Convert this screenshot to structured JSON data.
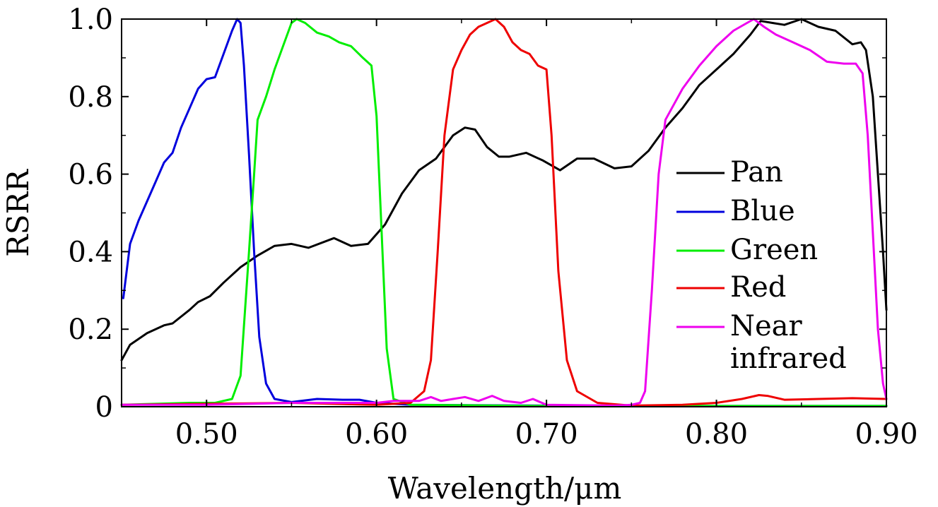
{
  "chart_data": {
    "type": "line",
    "xlabel": "Wavelength/μm",
    "ylabel": "RSRR",
    "xlim": [
      0.45,
      0.9
    ],
    "ylim": [
      0,
      1.0
    ],
    "x_ticks": [
      0.5,
      0.6,
      0.7,
      0.8,
      0.9
    ],
    "x_tick_labels": [
      "0.50",
      "0.60",
      "0.70",
      "0.80",
      "0.90"
    ],
    "y_ticks": [
      0,
      0.2,
      0.4,
      0.6,
      0.8,
      1.0
    ],
    "y_tick_labels": [
      "0",
      "0.2",
      "0.4",
      "0.6",
      "0.8",
      "1.0"
    ],
    "grid": false,
    "legend_position": "right",
    "series": [
      {
        "name": "Pan",
        "color": "#000000",
        "points": [
          [
            0.45,
            0.12
          ],
          [
            0.455,
            0.16
          ],
          [
            0.465,
            0.19
          ],
          [
            0.475,
            0.21
          ],
          [
            0.48,
            0.215
          ],
          [
            0.49,
            0.25
          ],
          [
            0.495,
            0.27
          ],
          [
            0.502,
            0.285
          ],
          [
            0.51,
            0.32
          ],
          [
            0.52,
            0.36
          ],
          [
            0.53,
            0.39
          ],
          [
            0.54,
            0.415
          ],
          [
            0.55,
            0.42
          ],
          [
            0.56,
            0.41
          ],
          [
            0.575,
            0.435
          ],
          [
            0.585,
            0.415
          ],
          [
            0.595,
            0.42
          ],
          [
            0.605,
            0.47
          ],
          [
            0.615,
            0.55
          ],
          [
            0.625,
            0.61
          ],
          [
            0.635,
            0.64
          ],
          [
            0.645,
            0.7
          ],
          [
            0.652,
            0.72
          ],
          [
            0.658,
            0.715
          ],
          [
            0.665,
            0.67
          ],
          [
            0.672,
            0.645
          ],
          [
            0.678,
            0.645
          ],
          [
            0.688,
            0.655
          ],
          [
            0.698,
            0.635
          ],
          [
            0.708,
            0.61
          ],
          [
            0.718,
            0.64
          ],
          [
            0.728,
            0.64
          ],
          [
            0.74,
            0.615
          ],
          [
            0.75,
            0.62
          ],
          [
            0.76,
            0.66
          ],
          [
            0.77,
            0.72
          ],
          [
            0.78,
            0.77
          ],
          [
            0.79,
            0.83
          ],
          [
            0.8,
            0.87
          ],
          [
            0.81,
            0.91
          ],
          [
            0.82,
            0.96
          ],
          [
            0.826,
            0.995
          ],
          [
            0.833,
            0.99
          ],
          [
            0.84,
            0.985
          ],
          [
            0.85,
            1.0
          ],
          [
            0.86,
            0.98
          ],
          [
            0.87,
            0.97
          ],
          [
            0.88,
            0.935
          ],
          [
            0.885,
            0.94
          ],
          [
            0.888,
            0.92
          ],
          [
            0.892,
            0.8
          ],
          [
            0.895,
            0.6
          ],
          [
            0.898,
            0.4
          ],
          [
            0.9,
            0.25
          ]
        ]
      },
      {
        "name": "Blue",
        "color": "#0000dd",
        "points": [
          [
            0.451,
            0.28
          ],
          [
            0.455,
            0.42
          ],
          [
            0.46,
            0.48
          ],
          [
            0.465,
            0.53
          ],
          [
            0.47,
            0.58
          ],
          [
            0.475,
            0.63
          ],
          [
            0.48,
            0.655
          ],
          [
            0.485,
            0.72
          ],
          [
            0.49,
            0.77
          ],
          [
            0.495,
            0.82
          ],
          [
            0.5,
            0.845
          ],
          [
            0.505,
            0.85
          ],
          [
            0.51,
            0.91
          ],
          [
            0.515,
            0.97
          ],
          [
            0.518,
            1.0
          ],
          [
            0.52,
            0.99
          ],
          [
            0.522,
            0.88
          ],
          [
            0.525,
            0.65
          ],
          [
            0.528,
            0.4
          ],
          [
            0.531,
            0.18
          ],
          [
            0.535,
            0.06
          ],
          [
            0.54,
            0.02
          ],
          [
            0.55,
            0.012
          ],
          [
            0.565,
            0.02
          ],
          [
            0.58,
            0.018
          ],
          [
            0.59,
            0.018
          ],
          [
            0.6,
            0.01
          ],
          [
            0.62,
            0.005
          ],
          [
            0.7,
            0.003
          ],
          [
            0.8,
            0.002
          ],
          [
            0.9,
            0.002
          ]
        ]
      },
      {
        "name": "Green",
        "color": "#00ee00",
        "points": [
          [
            0.45,
            0.005
          ],
          [
            0.49,
            0.01
          ],
          [
            0.505,
            0.01
          ],
          [
            0.515,
            0.02
          ],
          [
            0.52,
            0.08
          ],
          [
            0.525,
            0.4
          ],
          [
            0.528,
            0.6
          ],
          [
            0.53,
            0.74
          ],
          [
            0.535,
            0.8
          ],
          [
            0.54,
            0.87
          ],
          [
            0.545,
            0.93
          ],
          [
            0.55,
            0.99
          ],
          [
            0.553,
            1.0
          ],
          [
            0.558,
            0.99
          ],
          [
            0.565,
            0.965
          ],
          [
            0.572,
            0.955
          ],
          [
            0.578,
            0.94
          ],
          [
            0.585,
            0.93
          ],
          [
            0.592,
            0.9
          ],
          [
            0.597,
            0.88
          ],
          [
            0.6,
            0.75
          ],
          [
            0.603,
            0.45
          ],
          [
            0.606,
            0.15
          ],
          [
            0.61,
            0.02
          ],
          [
            0.62,
            0.005
          ],
          [
            0.7,
            0.002
          ],
          [
            0.8,
            0.002
          ],
          [
            0.9,
            0.002
          ]
        ]
      },
      {
        "name": "Red",
        "color": "#ee0000",
        "points": [
          [
            0.45,
            0.005
          ],
          [
            0.55,
            0.01
          ],
          [
            0.6,
            0.005
          ],
          [
            0.62,
            0.01
          ],
          [
            0.628,
            0.04
          ],
          [
            0.632,
            0.12
          ],
          [
            0.636,
            0.4
          ],
          [
            0.64,
            0.7
          ],
          [
            0.645,
            0.87
          ],
          [
            0.65,
            0.92
          ],
          [
            0.655,
            0.96
          ],
          [
            0.66,
            0.98
          ],
          [
            0.665,
            0.99
          ],
          [
            0.67,
            1.0
          ],
          [
            0.675,
            0.98
          ],
          [
            0.68,
            0.94
          ],
          [
            0.685,
            0.92
          ],
          [
            0.69,
            0.91
          ],
          [
            0.695,
            0.88
          ],
          [
            0.7,
            0.87
          ],
          [
            0.703,
            0.7
          ],
          [
            0.707,
            0.35
          ],
          [
            0.712,
            0.12
          ],
          [
            0.718,
            0.04
          ],
          [
            0.73,
            0.01
          ],
          [
            0.75,
            0.003
          ],
          [
            0.78,
            0.005
          ],
          [
            0.8,
            0.01
          ],
          [
            0.815,
            0.02
          ],
          [
            0.825,
            0.03
          ],
          [
            0.83,
            0.028
          ],
          [
            0.84,
            0.018
          ],
          [
            0.86,
            0.02
          ],
          [
            0.88,
            0.022
          ],
          [
            0.9,
            0.02
          ]
        ]
      },
      {
        "name": "Near infrared",
        "color": "#ee00ee",
        "points": [
          [
            0.45,
            0.005
          ],
          [
            0.5,
            0.005
          ],
          [
            0.55,
            0.01
          ],
          [
            0.6,
            0.01
          ],
          [
            0.61,
            0.015
          ],
          [
            0.625,
            0.015
          ],
          [
            0.632,
            0.025
          ],
          [
            0.638,
            0.015
          ],
          [
            0.645,
            0.02
          ],
          [
            0.652,
            0.025
          ],
          [
            0.66,
            0.015
          ],
          [
            0.668,
            0.028
          ],
          [
            0.675,
            0.015
          ],
          [
            0.685,
            0.01
          ],
          [
            0.692,
            0.02
          ],
          [
            0.7,
            0.005
          ],
          [
            0.74,
            0.003
          ],
          [
            0.75,
            0.005
          ],
          [
            0.755,
            0.01
          ],
          [
            0.758,
            0.04
          ],
          [
            0.762,
            0.3
          ],
          [
            0.766,
            0.6
          ],
          [
            0.77,
            0.74
          ],
          [
            0.78,
            0.82
          ],
          [
            0.79,
            0.88
          ],
          [
            0.8,
            0.93
          ],
          [
            0.81,
            0.97
          ],
          [
            0.818,
            0.99
          ],
          [
            0.822,
            1.0
          ],
          [
            0.828,
            0.98
          ],
          [
            0.835,
            0.96
          ],
          [
            0.845,
            0.94
          ],
          [
            0.855,
            0.92
          ],
          [
            0.865,
            0.89
          ],
          [
            0.875,
            0.885
          ],
          [
            0.882,
            0.885
          ],
          [
            0.886,
            0.86
          ],
          [
            0.889,
            0.7
          ],
          [
            0.892,
            0.45
          ],
          [
            0.895,
            0.2
          ],
          [
            0.898,
            0.06
          ],
          [
            0.9,
            0.02
          ]
        ]
      }
    ],
    "legend": [
      {
        "name": "Pan",
        "color": "#000000",
        "lines": [
          "Pan"
        ]
      },
      {
        "name": "Blue",
        "color": "#0000dd",
        "lines": [
          "Blue"
        ]
      },
      {
        "name": "Green",
        "color": "#00ee00",
        "lines": [
          "Green"
        ]
      },
      {
        "name": "Red",
        "color": "#ee0000",
        "lines": [
          "Red"
        ]
      },
      {
        "name": "Near infrared",
        "color": "#ee00ee",
        "lines": [
          "Near",
          "infrared"
        ]
      }
    ]
  }
}
